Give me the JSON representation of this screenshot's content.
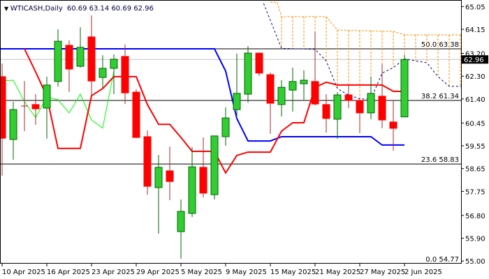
{
  "header": {
    "symbol": "WTICASH,Daily",
    "ohlc": "60.69 63.14 60.69 62.96"
  },
  "chart_data": {
    "type": "candlestick",
    "title": "WTICASH,Daily",
    "ylim": [
      55.0,
      65.05
    ],
    "y_ticks": [
      "65.05",
      "64.15",
      "63.20",
      "62.30",
      "61.40",
      "60.45",
      "59.55",
      "58.65",
      "57.75",
      "56.80",
      "55.90",
      "55.00"
    ],
    "x_ticks": [
      {
        "bar": 0,
        "label": "10 Apr 2025"
      },
      {
        "bar": 4,
        "label": "16 Apr 2025"
      },
      {
        "bar": 8,
        "label": "23 Apr 2025"
      },
      {
        "bar": 12,
        "label": "29 Apr 2025"
      },
      {
        "bar": 16,
        "label": "5 May 2025"
      },
      {
        "bar": 20,
        "label": "9 May 2025"
      },
      {
        "bar": 24,
        "label": "15 May 2025"
      },
      {
        "bar": 28,
        "label": "21 May 2025"
      },
      {
        "bar": 32,
        "label": "27 May 2025"
      },
      {
        "bar": 36,
        "label": "2 Jun 2025"
      }
    ],
    "last_price": "62.96",
    "candles_ohlc": [
      [
        62.28,
        62.8,
        58.37,
        59.85
      ],
      [
        59.8,
        61.29,
        59.0,
        60.98
      ],
      [
        61.12,
        62.11,
        60.13,
        61.1
      ],
      [
        61.18,
        61.59,
        60.38,
        61.01
      ],
      [
        61.04,
        62.28,
        59.83,
        61.95
      ],
      [
        62.09,
        64.15,
        61.89,
        63.68
      ],
      [
        63.52,
        63.71,
        61.67,
        62.58
      ],
      [
        62.69,
        64.23,
        62.64,
        63.44
      ],
      [
        63.85,
        64.7,
        61.53,
        62.11
      ],
      [
        62.25,
        63.13,
        61.84,
        62.61
      ],
      [
        62.61,
        63.16,
        61.59,
        62.97
      ],
      [
        63.08,
        63.55,
        61.2,
        61.64
      ],
      [
        61.67,
        61.78,
        59.85,
        59.88
      ],
      [
        59.91,
        60.16,
        57.62,
        57.95
      ],
      [
        57.9,
        59.19,
        56.08,
        58.7
      ],
      [
        58.56,
        59.52,
        57.4,
        58.14
      ],
      [
        56.16,
        57.43,
        55.09,
        56.96
      ],
      [
        56.88,
        59.5,
        56.74,
        58.72
      ],
      [
        58.7,
        59.88,
        57.51,
        57.68
      ],
      [
        57.62,
        59.94,
        57.43,
        59.94
      ],
      [
        59.91,
        61.07,
        59.55,
        60.65
      ],
      [
        60.98,
        63.19,
        60.68,
        61.62
      ],
      [
        61.59,
        63.49,
        61.26,
        63.21
      ],
      [
        63.21,
        63.24,
        62.31,
        62.42
      ],
      [
        62.36,
        62.44,
        60.02,
        61.23
      ],
      [
        61.18,
        62.14,
        60.71,
        61.86
      ],
      [
        61.75,
        62.64,
        60.9,
        62.09
      ],
      [
        62.0,
        62.53,
        61.37,
        62.14
      ],
      [
        62.09,
        64.04,
        61.15,
        61.2
      ],
      [
        61.18,
        61.59,
        60.07,
        60.63
      ],
      [
        60.6,
        61.67,
        59.83,
        61.56
      ],
      [
        61.56,
        61.95,
        61.04,
        61.34
      ],
      [
        61.34,
        61.4,
        60.05,
        60.85
      ],
      [
        60.85,
        62.28,
        60.6,
        61.62
      ],
      [
        61.51,
        62.77,
        60.24,
        60.57
      ],
      [
        60.49,
        61.34,
        59.36,
        60.24
      ],
      [
        60.69,
        63.14,
        60.69,
        62.96
      ]
    ],
    "red_line": [
      [
        2,
        63.38
      ],
      [
        3,
        62.47
      ],
      [
        4,
        61.5
      ],
      [
        5,
        59.45
      ],
      [
        7,
        59.45
      ],
      [
        8,
        61.53
      ],
      [
        9,
        61.81
      ],
      [
        10,
        62.28
      ],
      [
        12,
        62.28
      ],
      [
        13,
        61.18
      ],
      [
        14,
        60.4
      ],
      [
        15,
        60.4
      ],
      [
        16,
        59.88
      ],
      [
        17,
        59.33
      ],
      [
        19,
        59.33
      ],
      [
        20,
        58.48
      ],
      [
        21,
        59.17
      ],
      [
        22,
        59.3
      ],
      [
        24,
        59.3
      ],
      [
        25,
        60.13
      ],
      [
        26,
        60.46
      ],
      [
        27,
        60.46
      ],
      [
        28,
        61.86
      ],
      [
        29,
        62.06
      ],
      [
        30,
        61.95
      ],
      [
        34,
        61.95
      ],
      [
        35,
        61.7
      ],
      [
        35.7,
        61.7
      ]
    ],
    "blue_line": [
      [
        -0.2,
        63.38
      ],
      [
        19,
        63.38
      ],
      [
        20,
        62.5
      ],
      [
        21,
        60.63
      ],
      [
        22,
        59.74
      ],
      [
        24,
        59.74
      ],
      [
        25,
        59.91
      ],
      [
        33,
        59.91
      ],
      [
        34,
        59.58
      ],
      [
        36,
        59.58
      ]
    ],
    "green_line": [
      [
        -0.2,
        62.11
      ],
      [
        1,
        62.14
      ],
      [
        2,
        61.29
      ],
      [
        3,
        60.66
      ],
      [
        4,
        61.48
      ],
      [
        5,
        61.37
      ],
      [
        6,
        60.85
      ],
      [
        7,
        61.59
      ],
      [
        8,
        60.57
      ],
      [
        9,
        60.25
      ],
      [
        10,
        62.49
      ]
    ],
    "cloud_span_a": [
      [
        23.4,
        65.17
      ],
      [
        25,
        63.4
      ],
      [
        28,
        63.36
      ],
      [
        29,
        62.9
      ],
      [
        30,
        61.81
      ],
      [
        30.8,
        61.6
      ],
      [
        32,
        61.4
      ],
      [
        33,
        61.4
      ],
      [
        34,
        62.42
      ],
      [
        35,
        62.64
      ],
      [
        36,
        62.98
      ],
      [
        38,
        62.83
      ],
      [
        39,
        62.28
      ],
      [
        40,
        61.9
      ],
      [
        41.1,
        61.9
      ]
    ],
    "cloud_span_b": [
      [
        24,
        65.22
      ],
      [
        24.6,
        65.22
      ],
      [
        25,
        64.65
      ],
      [
        29,
        64.65
      ],
      [
        30,
        64.12
      ],
      [
        35,
        64.07
      ],
      [
        36,
        63.93
      ],
      [
        41.1,
        63.93
      ]
    ],
    "fib_levels": [
      {
        "label": "50.0 63.38",
        "price": 63.38
      },
      {
        "label": "38.2 61.34",
        "price": 61.34
      },
      {
        "label": "23.6 58.83",
        "price": 58.83
      },
      {
        "label": "0.0 54.77",
        "price": 54.77
      }
    ],
    "colors": {
      "bull": "#32CD32",
      "bull_outline": "#006400",
      "bear": "#FF0000",
      "bear_wick": "#A52A2A",
      "red_line": "#FF0000",
      "blue_line": "#0000FF",
      "green_line": "#00FF00",
      "span_a": "#000080",
      "span_b": "#FF8C00",
      "price_line": "#C0C0C0"
    }
  }
}
